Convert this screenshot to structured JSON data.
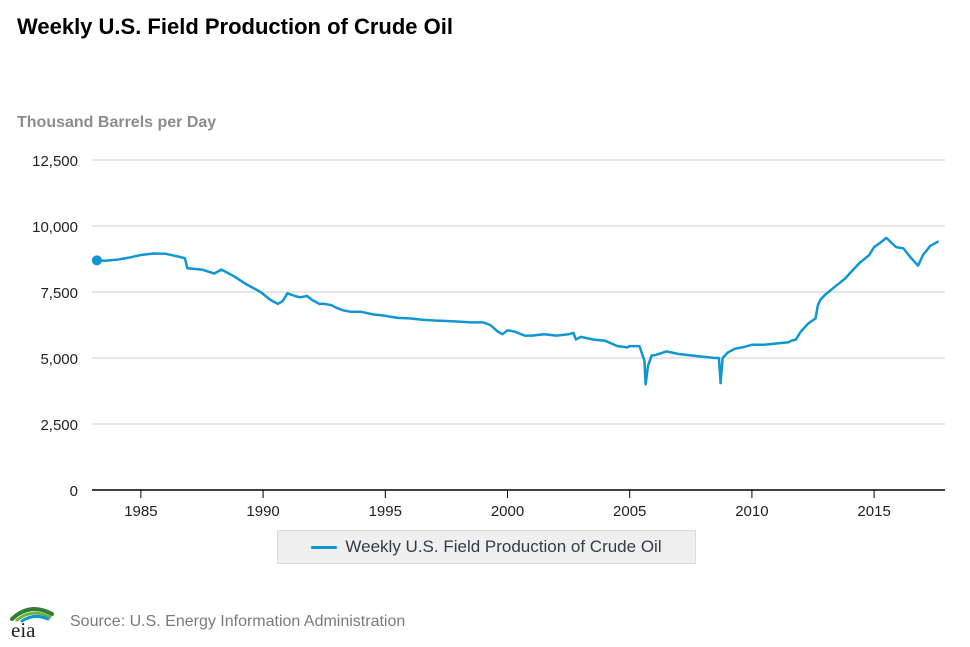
{
  "title": "Weekly U.S. Field Production of Crude Oil",
  "unit_label": "Thousand Barrels per Day",
  "legend_label": "Weekly U.S. Field Production of Crude Oil",
  "source": "Source: U.S. Energy Information Administration",
  "logo_text": "eia",
  "colors": {
    "series": "#1196d4",
    "grid": "#cccccc",
    "axis": "#000000"
  },
  "chart_data": {
    "type": "line",
    "title": "Weekly U.S. Field Production of Crude Oil",
    "ylabel": "Thousand Barrels per Day",
    "xlabel": "",
    "xlim": [
      1983.0,
      2017.9
    ],
    "ylim": [
      0,
      12500
    ],
    "y_ticks": [
      {
        "value": 0,
        "label": "0"
      },
      {
        "value": 2500,
        "label": "2,500"
      },
      {
        "value": 5000,
        "label": "5,000"
      },
      {
        "value": 7500,
        "label": "7,500"
      },
      {
        "value": 10000,
        "label": "10,000"
      },
      {
        "value": 12500,
        "label": "12,500"
      }
    ],
    "x_ticks": [
      {
        "value": 1985,
        "label": "1985"
      },
      {
        "value": 1990,
        "label": "1990"
      },
      {
        "value": 1995,
        "label": "1995"
      },
      {
        "value": 2000,
        "label": "2000"
      },
      {
        "value": 2005,
        "label": "2005"
      },
      {
        "value": 2010,
        "label": "2010"
      },
      {
        "value": 2015,
        "label": "2015"
      }
    ],
    "grid": true,
    "legend_position": "bottom",
    "series": [
      {
        "name": "Weekly U.S. Field Production of Crude Oil",
        "x": [
          1983.2,
          1983.5,
          1984.0,
          1984.5,
          1985.0,
          1985.5,
          1986.0,
          1986.5,
          1986.8,
          1986.9,
          1987.5,
          1988.0,
          1988.3,
          1988.8,
          1989.3,
          1989.9,
          1990.3,
          1990.6,
          1990.8,
          1991.0,
          1991.3,
          1991.5,
          1991.8,
          1992.0,
          1992.3,
          1992.5,
          1992.8,
          1993.0,
          1993.3,
          1993.6,
          1994.0,
          1994.5,
          1995.0,
          1995.5,
          1996.0,
          1996.5,
          1997.0,
          1997.5,
          1998.0,
          1998.5,
          1999.0,
          1999.3,
          1999.6,
          1999.8,
          2000.0,
          2000.3,
          2000.7,
          2001.0,
          2001.5,
          2002.0,
          2002.5,
          2002.7,
          2002.8,
          2003.0,
          2003.5,
          2004.0,
          2004.5,
          2004.9,
          2005.0,
          2005.4,
          2005.6,
          2005.65,
          2005.75,
          2005.9,
          2006.0,
          2006.5,
          2007.0,
          2007.5,
          2008.0,
          2008.5,
          2008.65,
          2008.72,
          2008.8,
          2009.0,
          2009.3,
          2009.6,
          2010.0,
          2010.5,
          2011.0,
          2011.5,
          2011.6,
          2011.8,
          2012.0,
          2012.3,
          2012.6,
          2012.7,
          2012.8,
          2013.0,
          2013.4,
          2013.8,
          2014.0,
          2014.4,
          2014.8,
          2015.0,
          2015.3,
          2015.5,
          2015.9,
          2016.2,
          2016.5,
          2016.8,
          2017.0,
          2017.3,
          2017.6
        ],
        "values": [
          8700,
          8680,
          8720,
          8800,
          8900,
          8960,
          8950,
          8850,
          8780,
          8400,
          8350,
          8200,
          8350,
          8100,
          7800,
          7500,
          7200,
          7050,
          7150,
          7450,
          7350,
          7300,
          7350,
          7200,
          7050,
          7050,
          7000,
          6900,
          6800,
          6750,
          6750,
          6650,
          6600,
          6520,
          6500,
          6450,
          6420,
          6400,
          6380,
          6350,
          6350,
          6250,
          6000,
          5900,
          6050,
          6000,
          5850,
          5850,
          5900,
          5850,
          5900,
          5950,
          5700,
          5800,
          5700,
          5650,
          5450,
          5400,
          5450,
          5450,
          4900,
          4000,
          4700,
          5100,
          5100,
          5250,
          5150,
          5100,
          5050,
          5000,
          5000,
          4050,
          5000,
          5200,
          5350,
          5400,
          5500,
          5500,
          5550,
          5600,
          5650,
          5700,
          6000,
          6300,
          6500,
          7000,
          7200,
          7400,
          7700,
          8000,
          8200,
          8600,
          8900,
          9200,
          9400,
          9550,
          9200,
          9150,
          8800,
          8500,
          8900,
          9250,
          9400
        ]
      }
    ]
  }
}
